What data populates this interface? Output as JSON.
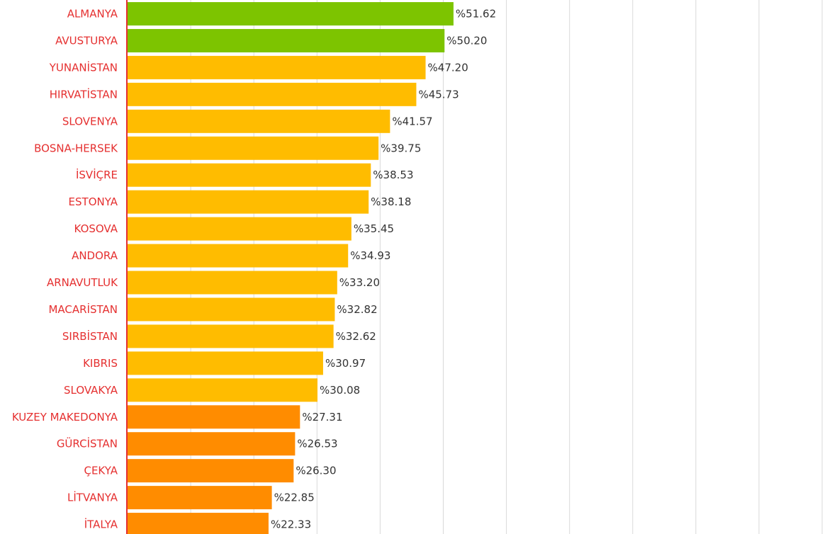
{
  "chart_data": {
    "type": "bar",
    "orientation": "horizontal",
    "title": "",
    "xlabel": "",
    "ylabel": "",
    "xlim": [
      0,
      110
    ],
    "grid": true,
    "grid_step": 10,
    "value_prefix": "%",
    "categories": [
      "ALMANYA",
      "AVUSTURYA",
      "YUNANİSTAN",
      "HIRVATİSTAN",
      "SLOVENYA",
      "BOSNA-HERSEK",
      "İSVİÇRE",
      "ESTONYA",
      "KOSOVA",
      "ANDORA",
      "ARNAVUTLUK",
      "MACARİSTAN",
      "SIRBİSTAN",
      "KIBRIS",
      "SLOVAKYA",
      "KUZEY MAKEDONYA",
      "GÜRCİSTAN",
      "ÇEKYA",
      "LİTVANYA",
      "İTALYA"
    ],
    "values": [
      51.62,
      50.2,
      47.2,
      45.73,
      41.57,
      39.75,
      38.53,
      38.18,
      35.45,
      34.93,
      33.2,
      32.82,
      32.62,
      30.97,
      30.08,
      27.31,
      26.53,
      26.3,
      22.85,
      22.33
    ],
    "value_labels": [
      "%51.62",
      "%50.20",
      "%47.20",
      "%45.73",
      "%41.57",
      "%39.75",
      "%38.53",
      "%38.18",
      "%35.45",
      "%34.93",
      "%33.20",
      "%32.82",
      "%32.62",
      "%30.97",
      "%30.08",
      "%27.31",
      "%26.53",
      "%26.30",
      "%22.85",
      "%22.33"
    ],
    "colors": {
      "high": "#7DC400",
      "mid": "#FFBC00",
      "low": "#FF8C00",
      "axis": "#E53030",
      "category_text": "#E53030",
      "grid": "#D9D9D9"
    },
    "color_thresholds": {
      "high_min": 50,
      "mid_min": 30
    }
  }
}
